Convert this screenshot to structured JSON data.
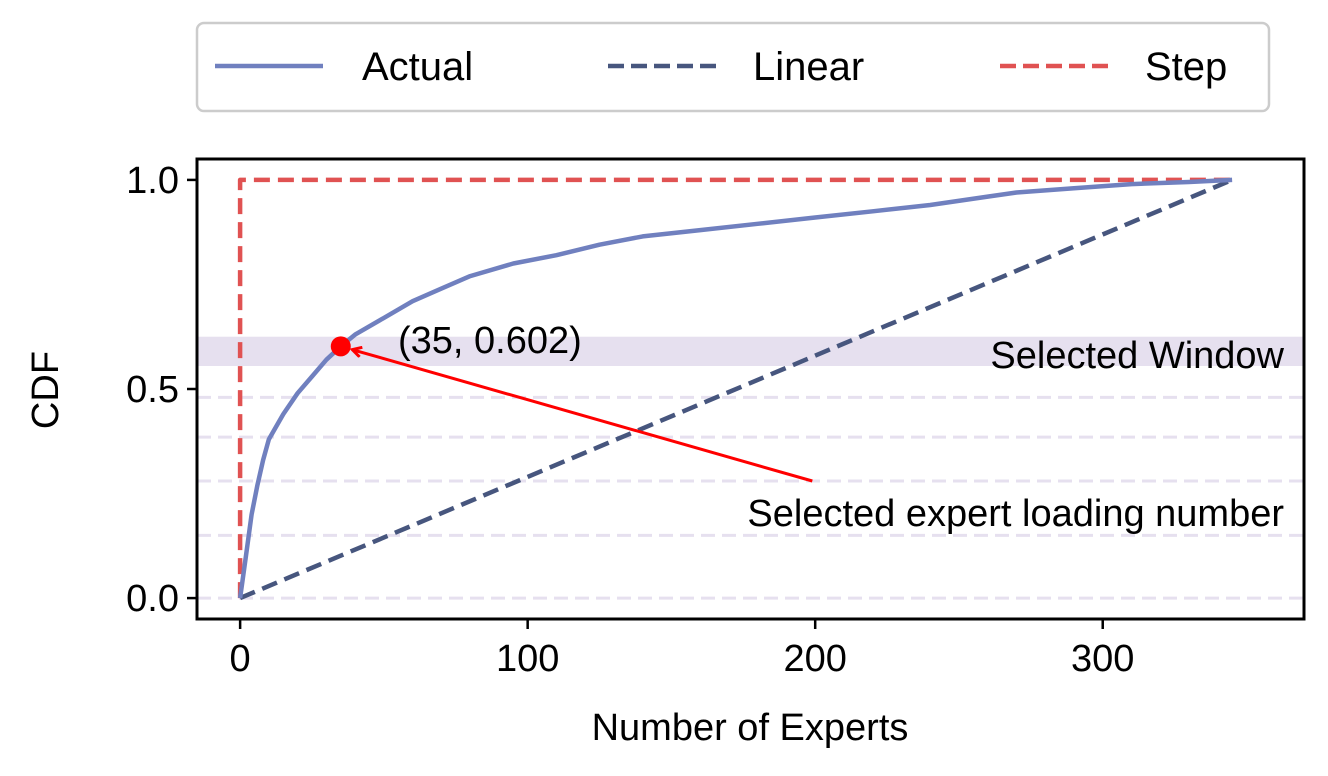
{
  "chart_data": {
    "type": "line",
    "xlabel": "Number of Experts",
    "ylabel": "CDF",
    "xlim": [
      -15,
      370
    ],
    "ylim": [
      -0.05,
      1.05
    ],
    "xticks": [
      0,
      100,
      200,
      300
    ],
    "xtick_labels": [
      "0",
      "100",
      "200",
      "300"
    ],
    "yticks": [
      0.0,
      0.5,
      1.0
    ],
    "ytick_labels": [
      "0.0",
      "0.5",
      "1.0"
    ],
    "legend_position": "top-center",
    "series": [
      {
        "name": "Actual",
        "style": "solid",
        "color": "#7080bf",
        "x": [
          0,
          2,
          4,
          6,
          8,
          10,
          15,
          20,
          25,
          30,
          35,
          40,
          50,
          60,
          70,
          80,
          95,
          110,
          125,
          140,
          160,
          180,
          200,
          220,
          240,
          260,
          270,
          290,
          310,
          330,
          345
        ],
        "y": [
          0.0,
          0.1,
          0.2,
          0.27,
          0.33,
          0.38,
          0.44,
          0.49,
          0.53,
          0.57,
          0.602,
          0.63,
          0.67,
          0.71,
          0.74,
          0.77,
          0.8,
          0.82,
          0.845,
          0.865,
          0.88,
          0.895,
          0.91,
          0.925,
          0.94,
          0.96,
          0.97,
          0.98,
          0.99,
          0.995,
          1.0
        ]
      },
      {
        "name": "Linear",
        "style": "dashed",
        "color": "#47567e",
        "x": [
          0,
          345
        ],
        "y": [
          0.0,
          1.0
        ]
      },
      {
        "name": "Step",
        "style": "dashed",
        "color": "#e05252",
        "x": [
          0,
          0,
          345
        ],
        "y": [
          0.0,
          1.0,
          1.0
        ]
      }
    ],
    "selected_window": {
      "y_range": [
        0.555,
        0.625
      ],
      "color": "#e6e0ef",
      "label": "Selected Window"
    },
    "dashed_hlines": {
      "y": [
        0.0,
        0.15,
        0.28,
        0.385,
        0.48
      ],
      "color": "#e6e0ef"
    },
    "highlight_point": {
      "x": 35,
      "y": 0.602,
      "label": "(35, 0.602)",
      "color": "#ff0000"
    },
    "arrow": {
      "from": [
        199,
        0.28
      ],
      "to": [
        35,
        0.602
      ],
      "label": "Selected expert loading number",
      "color": "#ff0000"
    }
  }
}
